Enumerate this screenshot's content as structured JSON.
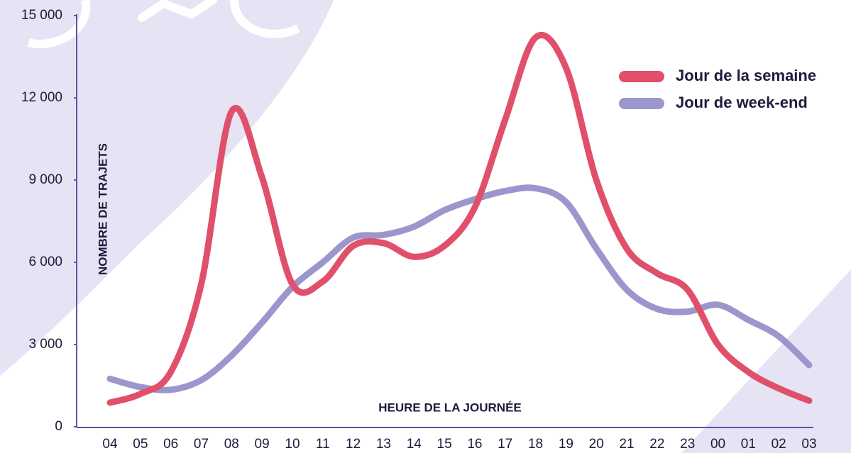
{
  "chart_data": {
    "type": "line",
    "y_label": "NOMBRE DE TRAJETS",
    "x_label": "HEURE DE LA JOURNÉE",
    "categories": [
      "04",
      "05",
      "06",
      "07",
      "08",
      "09",
      "10",
      "11",
      "12",
      "13",
      "14",
      "15",
      "16",
      "17",
      "18",
      "19",
      "20",
      "21",
      "22",
      "23",
      "00",
      "01",
      "02",
      "03"
    ],
    "series": [
      {
        "name": "Jour de la semaine",
        "color": "#e0506a",
        "values": [
          880,
          1200,
          2000,
          5200,
          11500,
          9100,
          5200,
          5300,
          6600,
          6700,
          6200,
          6600,
          8000,
          11200,
          14200,
          13100,
          9000,
          6500,
          5600,
          5000,
          3000,
          2000,
          1400,
          950
        ]
      },
      {
        "name": "Jour de week-end",
        "color": "#9b97cd",
        "values": [
          1750,
          1450,
          1350,
          1700,
          2600,
          3800,
          5100,
          6000,
          6900,
          7000,
          7300,
          7900,
          8300,
          8600,
          8700,
          8200,
          6500,
          5000,
          4300,
          4200,
          4450,
          3900,
          3300,
          2250
        ]
      }
    ],
    "ylim": [
      0,
      15000
    ],
    "yticks": [
      0,
      {
        "value": 3000,
        "label": "3 000"
      },
      {
        "value": 6000,
        "label": "6 000"
      },
      {
        "value": 9000,
        "label": "9 000"
      },
      {
        "value": 12000,
        "label": "12 000"
      },
      {
        "value": 15000,
        "label": "15 000"
      }
    ],
    "legend": "upper right"
  }
}
